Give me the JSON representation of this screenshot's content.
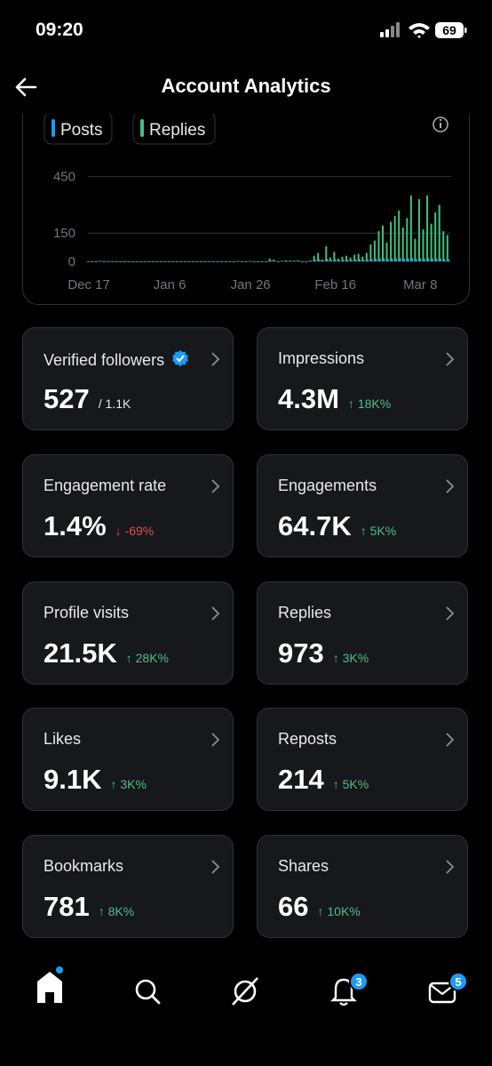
{
  "status": {
    "time": "09:20",
    "battery": "69"
  },
  "header": {
    "title": "Account Analytics"
  },
  "chart": {
    "type": "bar",
    "categories": [
      null,
      null,
      "Dec 17",
      null,
      null,
      null,
      null,
      null,
      null,
      null,
      null,
      null,
      null,
      null,
      null,
      null,
      null,
      null,
      null,
      null,
      null,
      null,
      "Jan 6",
      null,
      null,
      null,
      null,
      null,
      null,
      null,
      null,
      null,
      null,
      null,
      null,
      null,
      null,
      null,
      null,
      null,
      null,
      null,
      "Jan 26",
      null,
      null,
      null,
      null,
      null,
      null,
      null,
      null,
      null,
      null,
      null,
      null,
      null,
      null,
      null,
      null,
      null,
      null,
      null,
      null,
      "Feb 16",
      null,
      null,
      null,
      null,
      null,
      null,
      null,
      null,
      null,
      null,
      null,
      null,
      null,
      null,
      null,
      null,
      null,
      null,
      null,
      null,
      "Mar 8",
      null,
      null,
      null,
      null,
      null
    ],
    "series": [
      {
        "name": "Posts",
        "color": "#1d9bf0",
        "values": [
          0,
          0,
          0,
          2,
          0,
          0,
          0,
          0,
          0,
          0,
          0,
          0,
          0,
          0,
          0,
          0,
          0,
          0,
          0,
          0,
          0,
          0,
          0,
          0,
          0,
          0,
          0,
          0,
          0,
          0,
          0,
          0,
          0,
          0,
          0,
          0,
          0,
          2,
          0,
          0,
          2,
          0,
          0,
          0,
          0,
          5,
          4,
          0,
          2,
          3,
          3,
          2,
          3,
          0,
          0,
          3,
          8,
          10,
          4,
          12,
          6,
          10,
          5,
          8,
          9,
          6,
          10,
          12,
          8,
          10,
          12,
          14,
          15,
          16,
          12,
          15,
          16,
          18,
          14,
          15,
          18,
          12,
          16,
          14,
          18,
          14,
          15,
          16,
          12,
          12
        ]
      },
      {
        "name": "Replies",
        "color": "#3fbf7f",
        "values": [
          0,
          0,
          0,
          3,
          0,
          2,
          0,
          0,
          0,
          0,
          0,
          0,
          0,
          0,
          0,
          0,
          0,
          0,
          0,
          0,
          0,
          0,
          0,
          0,
          0,
          0,
          0,
          0,
          0,
          0,
          0,
          0,
          0,
          0,
          0,
          0,
          0,
          2,
          0,
          0,
          2,
          0,
          0,
          0,
          0,
          15,
          10,
          0,
          3,
          6,
          5,
          4,
          6,
          0,
          0,
          5,
          30,
          45,
          10,
          80,
          20,
          50,
          15,
          25,
          30,
          20,
          35,
          40,
          25,
          45,
          90,
          110,
          160,
          190,
          100,
          210,
          240,
          270,
          180,
          230,
          350,
          120,
          330,
          170,
          350,
          200,
          260,
          300,
          160,
          140
        ]
      }
    ],
    "ylim": [
      0,
      500
    ],
    "yticks": [
      0,
      150,
      450
    ],
    "grid": true
  },
  "cards": [
    {
      "label": "Verified followers",
      "value": "527",
      "extra": "/ 1.1K"
    },
    {
      "label": "Impressions",
      "value": "4.3M",
      "change": "18K%",
      "trend": "up"
    },
    {
      "label": "Engagement rate",
      "value": "1.4%",
      "change": "-69%",
      "trend": "down"
    },
    {
      "label": "Engagements",
      "value": "64.7K",
      "change": "5K%",
      "trend": "up"
    },
    {
      "label": "Profile visits",
      "value": "21.5K",
      "change": "28K%",
      "trend": "up"
    },
    {
      "label": "Replies",
      "value": "973",
      "change": "3K%",
      "trend": "up"
    },
    {
      "label": "Likes",
      "value": "9.1K",
      "change": "3K%",
      "trend": "up"
    },
    {
      "label": "Reposts",
      "value": "214",
      "change": "5K%",
      "trend": "up"
    },
    {
      "label": "Bookmarks",
      "value": "781",
      "change": "8K%",
      "trend": "up"
    },
    {
      "label": "Shares",
      "value": "66",
      "change": "10K%",
      "trend": "up"
    }
  ],
  "nav": {
    "notifications_badge": "3",
    "messages_badge": "5"
  }
}
